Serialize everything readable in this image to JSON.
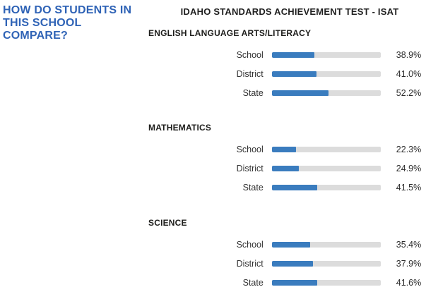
{
  "page": {
    "heading_lines": [
      "HOW DO STUDENTS IN",
      "THIS SCHOOL",
      "COMPARE?"
    ],
    "title": "IDAHO STANDARDS ACHIEVEMENT TEST - ISAT"
  },
  "colors": {
    "heading": "#2f63b6",
    "bar_fill": "#3a7cbe",
    "bar_track": "#dcdcdc"
  },
  "chart_data": {
    "type": "bar",
    "title": "IDAHO STANDARDS ACHIEVEMENT TEST - ISAT",
    "orientation": "horizontal",
    "unit": "percent",
    "xlim": [
      0,
      100
    ],
    "categories": [
      "School",
      "District",
      "State"
    ],
    "sections": [
      {
        "label": "ENGLISH LANGUAGE ARTS/LITERACY",
        "rows": [
          {
            "label": "School",
            "value": 38.9,
            "display": "38.9%"
          },
          {
            "label": "District",
            "value": 41.0,
            "display": "41.0%"
          },
          {
            "label": "State",
            "value": 52.2,
            "display": "52.2%"
          }
        ]
      },
      {
        "label": "MATHEMATICS",
        "rows": [
          {
            "label": "School",
            "value": 22.3,
            "display": "22.3%"
          },
          {
            "label": "District",
            "value": 24.9,
            "display": "24.9%"
          },
          {
            "label": "State",
            "value": 41.5,
            "display": "41.5%"
          }
        ]
      },
      {
        "label": "SCIENCE",
        "rows": [
          {
            "label": "School",
            "value": 35.4,
            "display": "35.4%"
          },
          {
            "label": "District",
            "value": 37.9,
            "display": "37.9%"
          },
          {
            "label": "State",
            "value": 41.6,
            "display": "41.6%"
          }
        ]
      }
    ]
  }
}
